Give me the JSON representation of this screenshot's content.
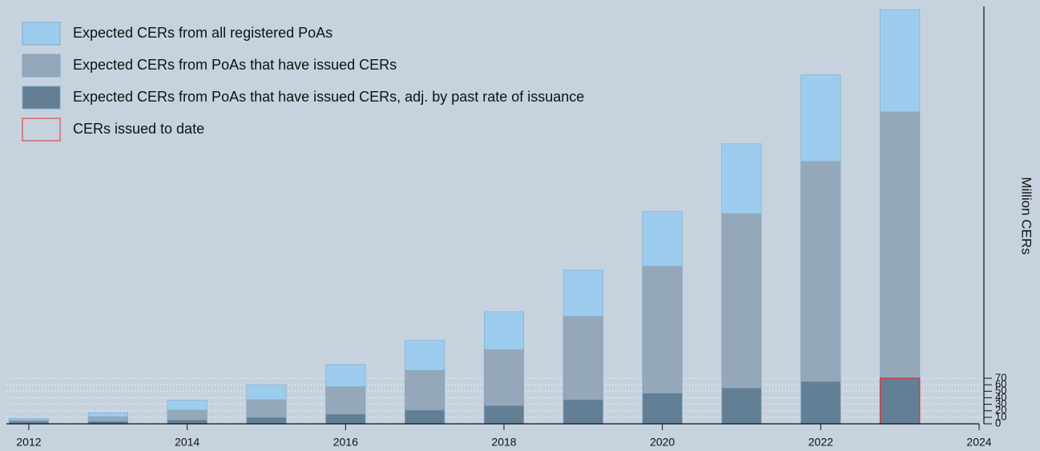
{
  "chart_data": {
    "type": "bar",
    "x": [
      2012,
      2013,
      2014,
      2015,
      2016,
      2017,
      2018,
      2019,
      2020,
      2021,
      2022,
      2023
    ],
    "series": [
      {
        "name": "Expected CERs from all registered PoAs",
        "color": "#9dcdee",
        "values": [
          8.6,
          17,
          36,
          60,
          91,
          128,
          172,
          236,
          326,
          430,
          536,
          636
        ]
      },
      {
        "name": "Expected CERs from PoAs that have issued CERs",
        "color": "#94a8b9",
        "values": [
          6,
          11,
          21,
          37,
          57,
          82,
          114,
          165,
          242,
          323,
          403,
          479
        ]
      },
      {
        "name": "Expected CERs from PoAs that have issued CERs, adj. by past rate of issuance",
        "color": "#627f95",
        "values": [
          3.7,
          4,
          6,
          10,
          15,
          21,
          28,
          37,
          47,
          55,
          65,
          71
        ]
      },
      {
        "name": "CERs issued to date",
        "color": "#e03030",
        "outline": true,
        "values": [
          null,
          null,
          null,
          null,
          null,
          null,
          null,
          null,
          null,
          null,
          null,
          70
        ]
      }
    ],
    "y_axis_label": "Million CERs",
    "xlim": [
      2011.717,
      2024
    ],
    "xticks": [
      2012,
      2014,
      2016,
      2018,
      2020,
      2022,
      2024
    ],
    "ylim": [
      0,
      641
    ],
    "yticks": [
      0,
      10,
      20,
      30,
      40,
      50,
      60,
      70
    ],
    "grid": true,
    "legend": "upper left"
  }
}
